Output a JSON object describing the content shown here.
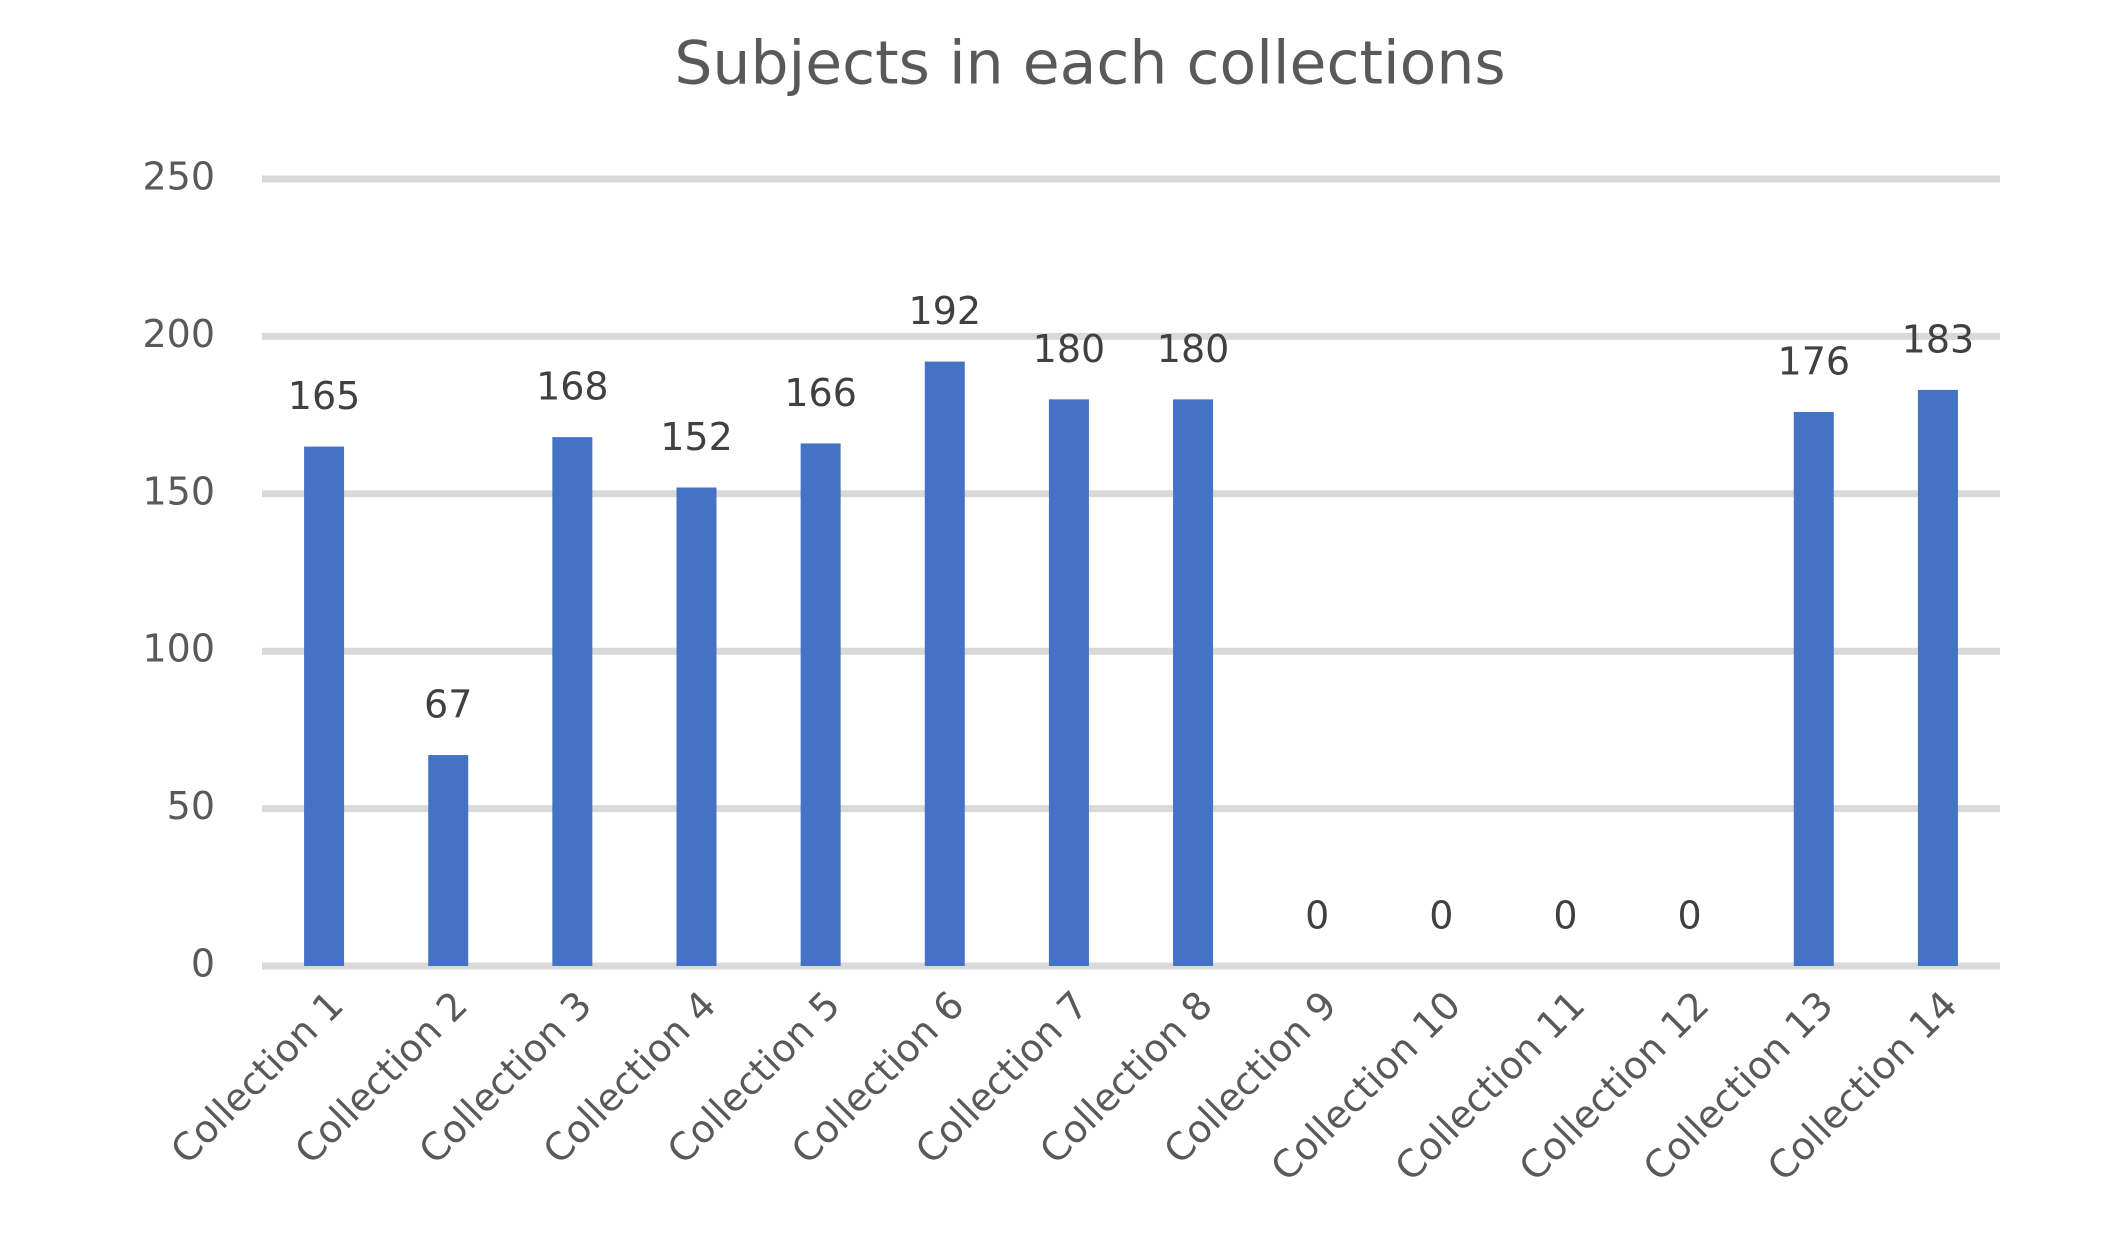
{
  "chart_data": {
    "type": "bar",
    "title": "Subjects in each collections",
    "categories": [
      "Collection 1",
      "Collection 2",
      "Collection 3",
      "Collection 4",
      "Collection 5",
      "Collection 6",
      "Collection 7",
      "Collection 8",
      "Collection 9",
      "Collection 10",
      "Collection 11",
      "Collection 12",
      "Collection 13",
      "Collection 14"
    ],
    "values": [
      165,
      67,
      168,
      152,
      166,
      192,
      180,
      180,
      0,
      0,
      0,
      0,
      176,
      183
    ],
    "color": "#4472c4",
    "ylim": [
      0,
      250
    ],
    "yticks": [
      0,
      50,
      100,
      150,
      200,
      250
    ],
    "grid": true
  }
}
